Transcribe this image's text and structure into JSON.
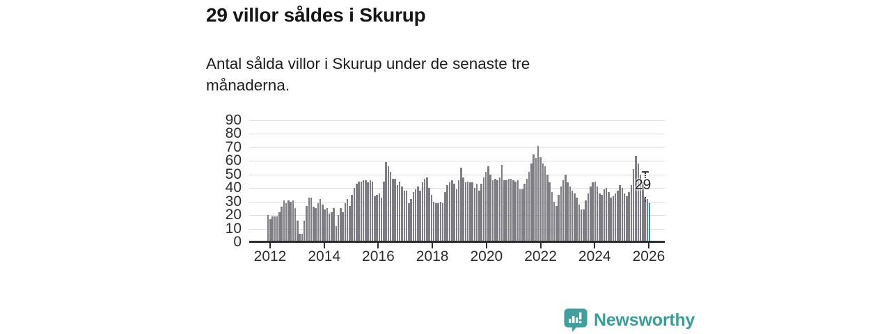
{
  "header": {
    "title": "29 villor såldes i Skurup",
    "subtitle": "Antal sålda villor i Skurup under de senaste tre månaderna."
  },
  "chart_data": {
    "type": "bar",
    "title": "29 villor såldes i Skurup",
    "subtitle": "Antal sålda villor i Skurup under de senaste tre månaderna.",
    "x_start": "2012-01",
    "x_end": "2026-01",
    "x_unit": "month",
    "xticks": [
      "2012",
      "2014",
      "2016",
      "2018",
      "2020",
      "2022",
      "2024",
      "2026"
    ],
    "yticks": [
      0,
      10,
      20,
      30,
      40,
      50,
      60,
      70,
      80,
      90
    ],
    "ylim": [
      0,
      90
    ],
    "grid": true,
    "bar_color": "#7d7d83",
    "values": [
      20,
      17,
      19,
      19,
      19,
      22,
      26,
      31,
      29,
      31,
      30,
      31,
      25,
      16,
      6,
      6,
      16,
      27,
      33,
      33,
      26,
      25,
      29,
      32,
      28,
      24,
      25,
      21,
      22,
      25,
      12,
      20,
      25,
      22,
      29,
      32,
      27,
      35,
      40,
      43,
      45,
      45,
      46,
      46,
      44,
      46,
      45,
      34,
      35,
      36,
      33,
      45,
      59,
      56,
      52,
      47,
      47,
      42,
      45,
      41,
      38,
      38,
      29,
      32,
      37,
      39,
      41,
      38,
      44,
      47,
      48,
      40,
      35,
      30,
      29,
      29,
      30,
      29,
      37,
      42,
      44,
      46,
      43,
      39,
      46,
      55,
      48,
      44,
      45,
      44,
      44,
      40,
      43,
      38,
      43,
      48,
      52,
      56,
      50,
      46,
      47,
      46,
      48,
      57,
      46,
      46,
      47,
      47,
      46,
      45,
      46,
      39,
      39,
      43,
      47,
      52,
      58,
      65,
      62,
      71,
      63,
      58,
      56,
      50,
      44,
      37,
      30,
      27,
      35,
      41,
      46,
      50,
      44,
      41,
      38,
      36,
      33,
      28,
      24,
      24,
      31,
      36,
      41,
      44,
      45,
      41,
      36,
      35,
      39,
      40,
      37,
      33,
      34,
      36,
      38,
      42,
      40,
      36,
      34,
      37,
      42,
      54,
      64,
      58,
      50,
      44,
      33,
      32,
      29
    ],
    "highlight": {
      "index": 168,
      "value": 29,
      "color": "#0aa69e"
    }
  },
  "annotation": {
    "label": "29"
  },
  "footer": {
    "brand": "Newsworthy",
    "logo_color": "#41a09c",
    "wordmark_color": "#3b9d9a",
    "logo_icon": "speech-bubble-bar-chart-icon"
  }
}
